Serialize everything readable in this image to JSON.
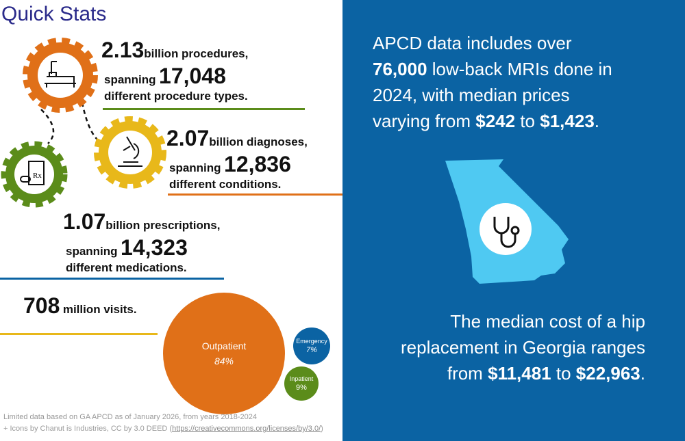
{
  "title": "Quick Stats",
  "stats": {
    "procedures": {
      "value": "2.13",
      "unit": "billion procedures,",
      "span_label": "spanning",
      "span_value": "17,048",
      "desc": "different procedure types."
    },
    "diagnoses": {
      "value": "2.07",
      "unit": "billion diagnoses,",
      "span_label": "spanning",
      "span_value": "12,836",
      "desc": "different conditions."
    },
    "prescriptions": {
      "value": "1.07",
      "unit": "billion prescriptions,",
      "span_label": "spanning",
      "span_value": "14,323",
      "desc": "different medications."
    },
    "visits": {
      "value": "708",
      "unit": "million visits."
    }
  },
  "visits_chart": {
    "type": "bubble",
    "items": [
      {
        "label": "Outpatient",
        "pct": "84%",
        "value": 84,
        "color": "#e07018"
      },
      {
        "label": "Emergency",
        "pct": "7%",
        "value": 7,
        "color": "#0b63a3"
      },
      {
        "label": "Inpatient",
        "pct": "9%",
        "value": 9,
        "color": "#5b8c1a"
      }
    ]
  },
  "icons": {
    "gear_procedures": "hospital-bed-icon",
    "gear_diagnoses": "microscope-icon",
    "gear_prescriptions": "pill-bottle-icon",
    "map": "georgia-map-stethoscope-icon"
  },
  "right": {
    "mri": {
      "t1": "APCD data includes over",
      "b1": "76,000",
      "t2": " low-back MRIs done in",
      "t3": "2024, with median prices",
      "t4": "varying from ",
      "b2": "$242",
      "t5": " to ",
      "b3": "$1,423",
      "t6": "."
    },
    "hip": {
      "t1": "The median cost of a hip",
      "t2": "replacement in Georgia ranges",
      "t3": "from ",
      "b1": "$11,481",
      "t4": " to ",
      "b2": "$22,963",
      "t5": "."
    }
  },
  "footer": {
    "line1": "Limited data based on GA APCD as of January 2026, from years 2018-2024",
    "line2": "+ Icons by Chanut is Industries, CC by 3.0 DEED (",
    "link": "https://creativecommons.org/licenses/by/3.0/",
    "close": ")"
  },
  "colors": {
    "orange": "#e07018",
    "yellow": "#e8b81a",
    "green": "#5b8c1a",
    "blue": "#0b63a3",
    "title": "#2a2a8a",
    "map": "#4fc9f2"
  }
}
